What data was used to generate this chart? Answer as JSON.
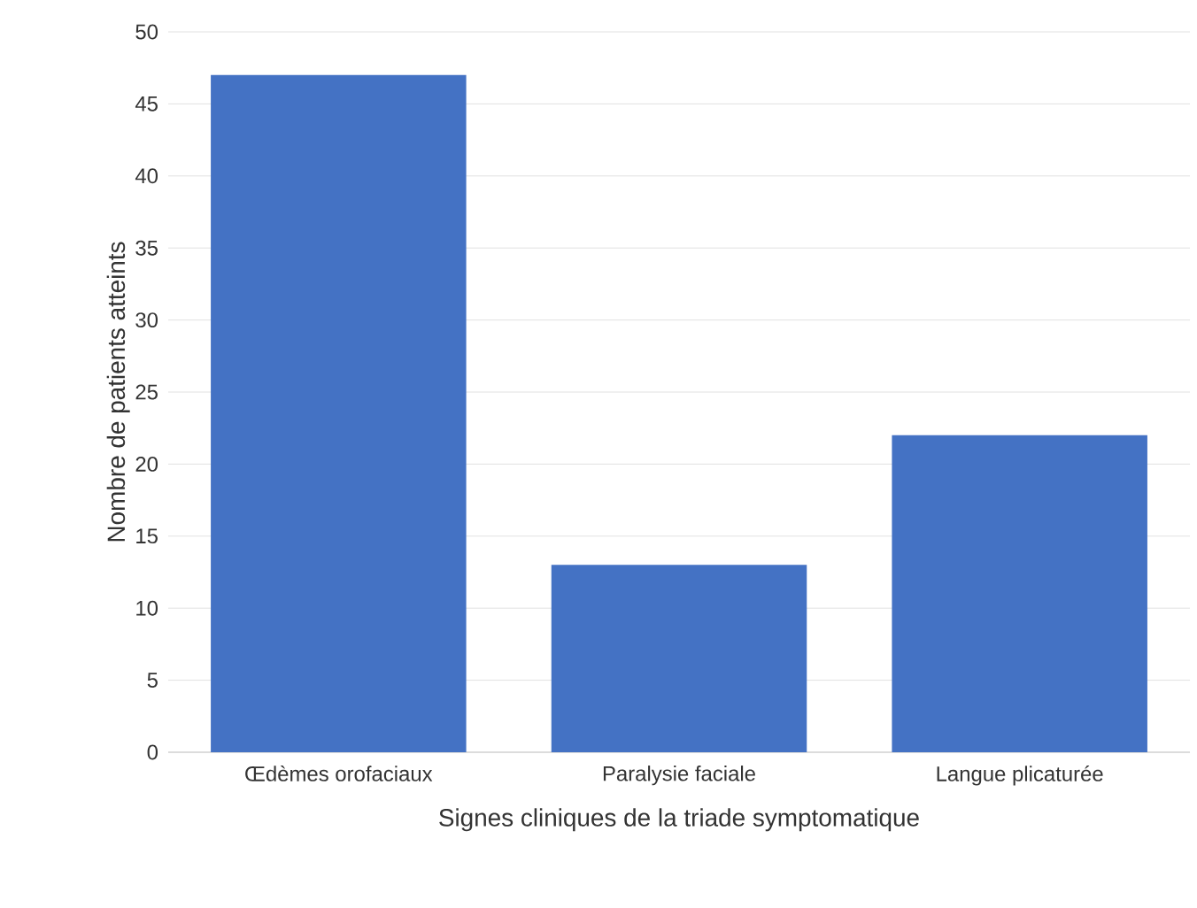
{
  "chart_data": {
    "type": "bar",
    "xlabel": "Signes cliniques de la triade symptomatique",
    "ylabel": "Nombre de patients atteints",
    "categories": [
      "Œdèmes orofaciaux",
      "Paralysie faciale",
      "Langue plicaturée"
    ],
    "values": [
      47,
      13,
      22
    ],
    "color": "#4472c4",
    "ylim": [
      0,
      50
    ],
    "yticks": [
      0,
      5,
      10,
      15,
      20,
      25,
      30,
      35,
      40,
      45,
      50
    ],
    "grid": "y"
  }
}
